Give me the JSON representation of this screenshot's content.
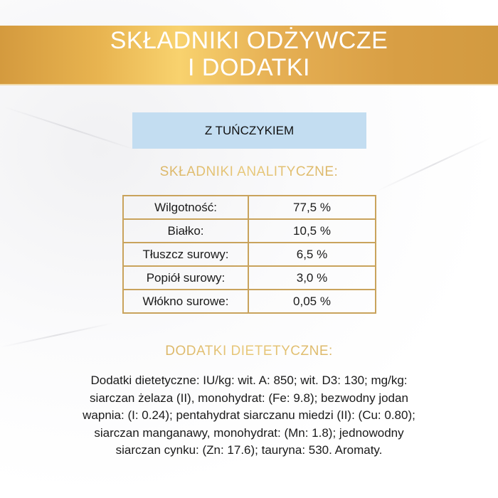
{
  "header": {
    "title_line1": "SKŁADNIKI ODŻYWCZE",
    "title_line2": "I DODATKI"
  },
  "variant": {
    "label": "Z TUŃCZYKIEM"
  },
  "analytical": {
    "title": "SKŁADNIKI ANALITYCZNE:",
    "rows": [
      {
        "name": "Wilgotność:",
        "value": "77,5 %"
      },
      {
        "name": "Białko:",
        "value": "10,5 %"
      },
      {
        "name": "Tłuszcz surowy:",
        "value": "6,5 %"
      },
      {
        "name": "Popiół surowy:",
        "value": "3,0 %"
      },
      {
        "name": "Włókno surowe:",
        "value": "0,05 %"
      }
    ]
  },
  "additives": {
    "title": "DODATKI DIETETYCZNE:",
    "lines": [
      "Dodatki dietetyczne: IU/kg: wit. A: 850; wit. D3: 130; mg/kg:",
      "siarczan żelaza (II), monohydrat: (Fe: 9.8); bezwodny jodan",
      "wapnia: (I: 0.24); pentahydrat siarczanu miedzi (II): (Cu: 0.80);",
      "siarczan manganawy, monohydrat: (Mn: 1.8); jednowodny",
      "siarczan cynku: (Zn: 17.6); tauryna: 530. Aromaty."
    ]
  },
  "colors": {
    "banner_gold": "#e2aa4c",
    "variant_blue": "#c3ddf1",
    "section_gold": "#c9a050"
  }
}
